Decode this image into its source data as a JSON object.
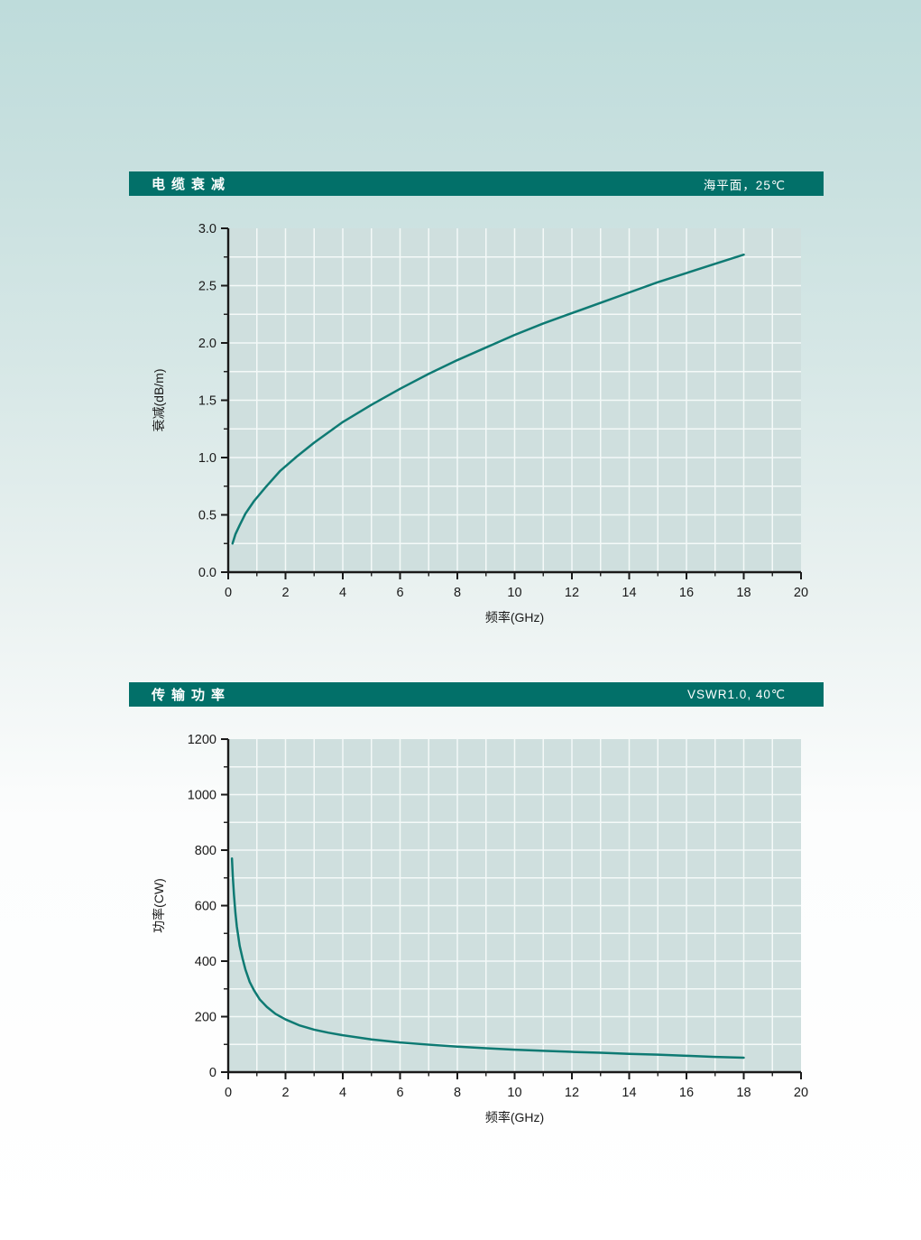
{
  "colors": {
    "page_bg_top": "#c3e0df",
    "page_bg_bottom": "#ffffff",
    "header_bg": "#027069",
    "header_text": "#ffffff",
    "plot_bg": "#cfdfde",
    "grid": "#f4f9f8",
    "axis": "#1a1a1a",
    "curve": "#0e7a73",
    "text": "#1a1a1a"
  },
  "charts": [
    {
      "id": "attenuation",
      "header": {
        "title": "电缆衰减",
        "condition": "海平面，25℃"
      },
      "chart_data": {
        "type": "line",
        "title": "电缆衰减",
        "xlabel": "频率(GHz)",
        "ylabel": "衰减(dB/m)",
        "xlim": [
          0,
          20
        ],
        "ylim": [
          0,
          3
        ],
        "grid": true,
        "legend": "none",
        "x_tick_values": [
          0,
          2,
          4,
          6,
          8,
          10,
          12,
          14,
          16,
          18,
          20
        ],
        "x_tick_labels": [
          "0",
          "2",
          "4",
          "6",
          "8",
          "10",
          "12",
          "14",
          "16",
          "18",
          "20"
        ],
        "y_tick_values": [
          0,
          0.5,
          1,
          1.5,
          2,
          2.5,
          3
        ],
        "y_tick_labels": [
          "0.0",
          "0.5",
          "1.0",
          "1.5",
          "2.0",
          "2.5",
          "3.0"
        ],
        "x_minor_step": 1,
        "y_minor_step": 0.25,
        "x": [
          0.15,
          0.25,
          0.4,
          0.6,
          0.9,
          1.3,
          1.8,
          2.4,
          3,
          4,
          5,
          6,
          7,
          8,
          9,
          10,
          11,
          12,
          13,
          14,
          15,
          16,
          17,
          18
        ],
        "series": [
          {
            "name": "衰减",
            "values": [
              0.25,
              0.33,
              0.41,
              0.51,
              0.62,
              0.74,
              0.88,
              1.01,
              1.13,
              1.31,
              1.46,
              1.6,
              1.73,
              1.85,
              1.96,
              2.07,
              2.17,
              2.26,
              2.35,
              2.44,
              2.53,
              2.61,
              2.69,
              2.77
            ]
          }
        ]
      }
    },
    {
      "id": "power",
      "header": {
        "title": "传输功率",
        "condition": "VSWR1.0, 40℃"
      },
      "chart_data": {
        "type": "line",
        "title": "传输功率",
        "xlabel": "频率(GHz)",
        "ylabel": "功率(CW)",
        "xlim": [
          0,
          20
        ],
        "ylim": [
          0,
          1200
        ],
        "grid": true,
        "legend": "none",
        "x_tick_values": [
          0,
          2,
          4,
          6,
          8,
          10,
          12,
          14,
          16,
          18,
          20
        ],
        "x_tick_labels": [
          "0",
          "2",
          "4",
          "6",
          "8",
          "10",
          "12",
          "14",
          "16",
          "18",
          "20"
        ],
        "y_tick_values": [
          0,
          200,
          400,
          600,
          800,
          1000,
          1200
        ],
        "y_tick_labels": [
          "0",
          "200",
          "400",
          "600",
          "800",
          "1000",
          "1200"
        ],
        "x_minor_step": 1,
        "y_minor_step": 100,
        "x": [
          0.13,
          0.16,
          0.2,
          0.25,
          0.3,
          0.4,
          0.5,
          0.6,
          0.75,
          0.9,
          1.1,
          1.35,
          1.65,
          2,
          2.5,
          3,
          3.5,
          4,
          5,
          6,
          7,
          8,
          9,
          10,
          11,
          12,
          13,
          14,
          15,
          16,
          17,
          18
        ],
        "series": [
          {
            "name": "功率",
            "values": [
              770,
              705,
              640,
              575,
              525,
              455,
              410,
              370,
              325,
              295,
              262,
              235,
              210,
              190,
              168,
              153,
              142,
              133,
              118,
              107,
              99,
              92,
              86,
              81,
              77,
              73,
              70,
              66,
              63,
              59,
              55,
              52
            ]
          }
        ]
      }
    }
  ]
}
